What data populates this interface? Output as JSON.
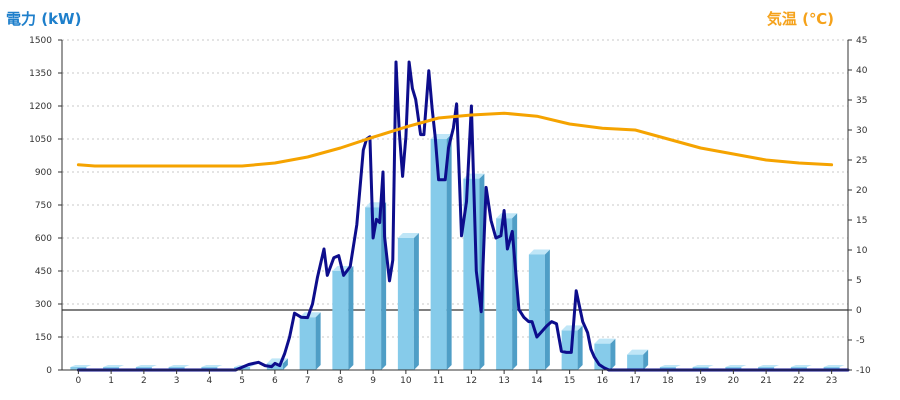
{
  "chart_data": {
    "type": "bar",
    "left_axis_title": "電力 (kW)",
    "right_axis_title": "気温 (℃)",
    "x_ticks": [
      "0",
      "1",
      "2",
      "3",
      "4",
      "5",
      "6",
      "7",
      "8",
      "9",
      "10",
      "11",
      "12",
      "13",
      "14",
      "15",
      "16",
      "17",
      "18",
      "19",
      "20",
      "21",
      "22",
      "23"
    ],
    "ylim_left": [
      0,
      1500
    ],
    "ylim_right": [
      -10,
      45
    ],
    "y_ticks_left": [
      "0",
      "150",
      "300",
      "450",
      "600",
      "750",
      "900",
      "1050",
      "1200",
      "1350",
      "1500"
    ],
    "y_ticks_right": [
      "-10",
      "-5",
      "0",
      "5",
      "10",
      "15",
      "20",
      "25",
      "30",
      "35",
      "40",
      "45"
    ],
    "grid": true,
    "series": [
      {
        "kind": "bar",
        "axis": "left",
        "x": [
          0,
          1,
          2,
          3,
          4,
          5,
          6,
          7,
          8,
          9,
          10,
          11,
          12,
          13,
          14,
          15,
          16,
          17,
          18,
          19,
          20,
          21,
          22,
          23
        ],
        "values": [
          0,
          0,
          0,
          0,
          0,
          0,
          30,
          240,
          450,
          740,
          600,
          1050,
          870,
          690,
          525,
          180,
          120,
          70,
          0,
          0,
          0,
          0,
          0,
          0
        ]
      },
      {
        "kind": "line",
        "axis": "left",
        "x": [
          0,
          4.8,
          5.2,
          5.5,
          5.7,
          5.9,
          6.0,
          6.15,
          6.3,
          6.45,
          6.6,
          6.8,
          7.0,
          7.15,
          7.3,
          7.5,
          7.6,
          7.8,
          7.95,
          8.1,
          8.3,
          8.5,
          8.7,
          8.8,
          8.9,
          9.0,
          9.1,
          9.2,
          9.3,
          9.35,
          9.5,
          9.6,
          9.7,
          9.8,
          9.9,
          10.0,
          10.1,
          10.2,
          10.3,
          10.45,
          10.55,
          10.7,
          10.8,
          10.9,
          11.0,
          11.2,
          11.3,
          11.45,
          11.55,
          11.7,
          11.85,
          12.0,
          12.15,
          12.3,
          12.45,
          12.6,
          12.75,
          12.9,
          13.0,
          13.1,
          13.25,
          13.45,
          13.6,
          13.75,
          13.85,
          14.0,
          14.15,
          14.3,
          14.45,
          14.6,
          14.75,
          14.9,
          15.05,
          15.2,
          15.4,
          15.55,
          15.65,
          15.75,
          15.9,
          16.05,
          16.2,
          16.35,
          16.45,
          16.65,
          16.85,
          17.1,
          17.4,
          17.8,
          18.5,
          23.5
        ],
        "values": [
          0,
          0,
          25,
          35,
          20,
          15,
          30,
          20,
          75,
          150,
          258,
          240,
          238,
          300,
          420,
          550,
          430,
          510,
          520,
          430,
          470,
          660,
          1000,
          1050,
          1060,
          600,
          685,
          670,
          900,
          605,
          405,
          500,
          1400,
          1080,
          880,
          1060,
          1400,
          1280,
          1230,
          1070,
          1070,
          1360,
          1190,
          1050,
          865,
          865,
          1010,
          1100,
          1210,
          610,
          765,
          1200,
          450,
          265,
          830,
          680,
          600,
          610,
          725,
          550,
          630,
          275,
          240,
          220,
          220,
          150,
          175,
          200,
          220,
          210,
          85,
          80,
          80,
          360,
          220,
          170,
          95,
          60,
          25,
          10,
          0,
          0,
          0,
          0,
          0,
          0,
          0,
          0,
          0,
          0
        ],
        "color": "#0d0d8c"
      },
      {
        "kind": "line",
        "axis": "right",
        "x": [
          0,
          0.5,
          1,
          2,
          3,
          4,
          5,
          6,
          7,
          8,
          9,
          10,
          11,
          12,
          13,
          14,
          15,
          16,
          17,
          18,
          19,
          20,
          21,
          22,
          23
        ],
        "values": [
          24.2,
          24.0,
          24.0,
          24.0,
          24.0,
          24.0,
          24.0,
          24.5,
          25.5,
          27.0,
          28.8,
          30.5,
          32.0,
          32.5,
          32.8,
          32.3,
          31.0,
          30.3,
          30.0,
          28.5,
          27.0,
          26.0,
          25.0,
          24.5,
          24.2
        ],
        "color": "#f5a300"
      }
    ],
    "colors": {
      "bar_face": "#86cbea",
      "bar_side": "#4f9ec6",
      "bar_top": "#bfe6f7",
      "grid": "#c8c8c8",
      "left_title": "#1e7fcb",
      "right_title": "#f5a21b"
    }
  }
}
